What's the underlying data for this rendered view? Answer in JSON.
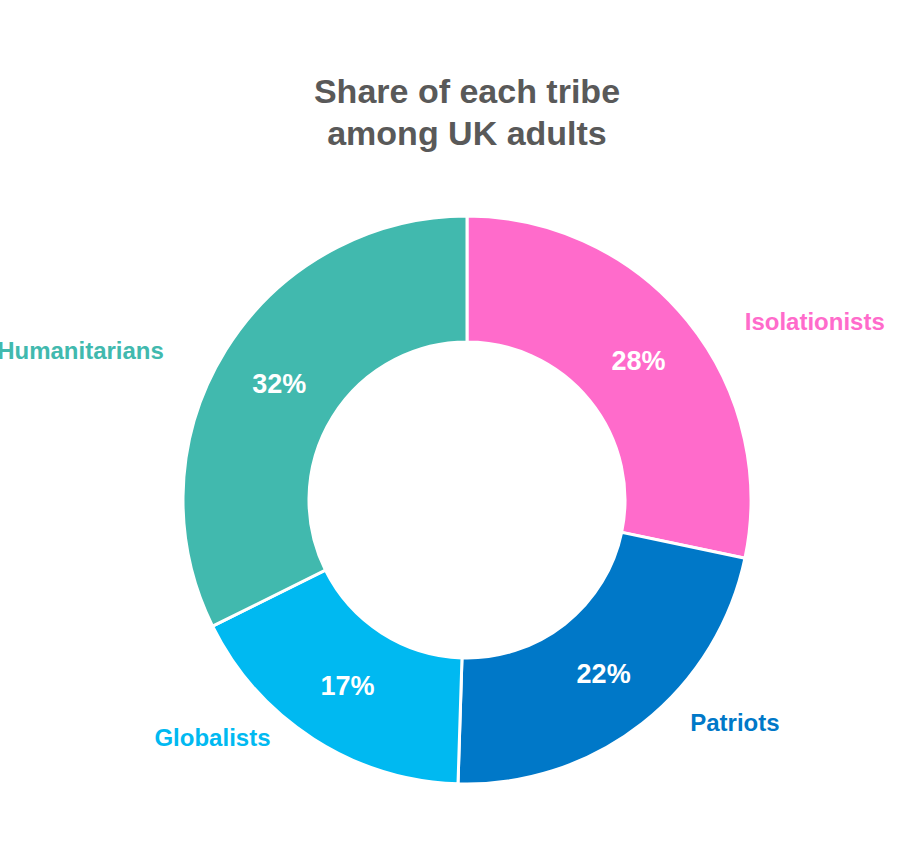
{
  "chart_data": {
    "type": "donut",
    "title": "Share of each tribe among UK adults",
    "categories": [
      "Isolationists",
      "Patriots",
      "Globalists",
      "Humanitarians"
    ],
    "values": [
      28,
      22,
      17,
      32
    ],
    "value_labels": [
      "28%",
      "22%",
      "17%",
      "32%"
    ],
    "colors": [
      "#ff6bcb",
      "#0078c8",
      "#00b9f1",
      "#41b9ae"
    ],
    "data_labels": true
  }
}
